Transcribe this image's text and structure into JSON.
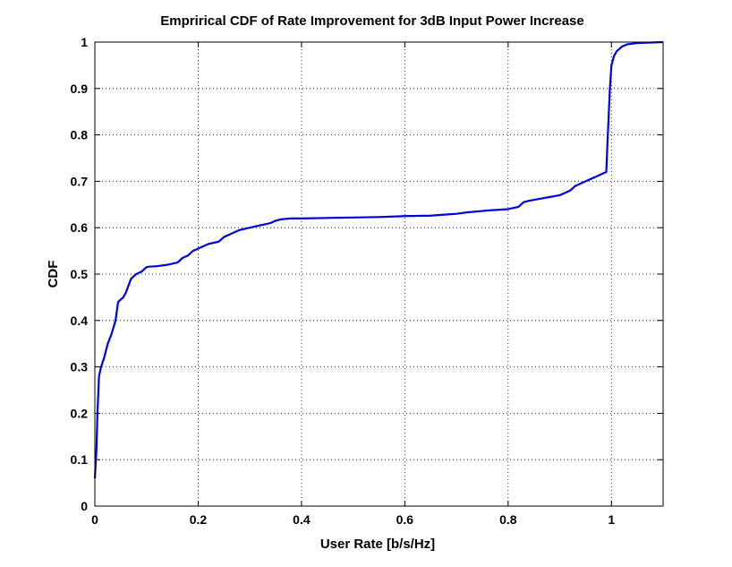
{
  "chart_data": {
    "type": "line",
    "title": "Emprirical CDF of Rate Improvement for 3dB Input Power Increase",
    "xlabel": "User Rate [b/s/Hz]",
    "ylabel": "CDF",
    "xlim": [
      0,
      1.1
    ],
    "ylim": [
      0,
      1
    ],
    "xticks": [
      0,
      0.2,
      0.4,
      0.6,
      0.8,
      1
    ],
    "xtick_labels": [
      "0",
      "0.2",
      "0.4",
      "0.6",
      "0.8",
      "1"
    ],
    "yticks": [
      0,
      0.1,
      0.2,
      0.3,
      0.4,
      0.5,
      0.6,
      0.7,
      0.8,
      0.9,
      1
    ],
    "ytick_labels": [
      "0",
      "0.1",
      "0.2",
      "0.3",
      "0.4",
      "0.5",
      "0.6",
      "0.7",
      "0.8",
      "0.9",
      "1"
    ],
    "grid": true,
    "series": [
      {
        "color": "#0000e0",
        "x": [
          0,
          0.003,
          0.005,
          0.008,
          0.012,
          0.018,
          0.025,
          0.032,
          0.04,
          0.045,
          0.05,
          0.055,
          0.06,
          0.065,
          0.07,
          0.075,
          0.08,
          0.09,
          0.095,
          0.1,
          0.105,
          0.12,
          0.14,
          0.16,
          0.17,
          0.18,
          0.19,
          0.2,
          0.21,
          0.22,
          0.24,
          0.25,
          0.26,
          0.28,
          0.3,
          0.32,
          0.34,
          0.35,
          0.36,
          0.38,
          0.4,
          0.45,
          0.5,
          0.55,
          0.6,
          0.65,
          0.7,
          0.72,
          0.74,
          0.76,
          0.8,
          0.82,
          0.83,
          0.84,
          0.86,
          0.88,
          0.9,
          0.91,
          0.92,
          0.93,
          0.94,
          0.95,
          0.96,
          0.97,
          0.98,
          0.99,
          0.993,
          0.995,
          0.997,
          1.0,
          1.005,
          1.01,
          1.02,
          1.03,
          1.05,
          1.1
        ],
        "y": [
          0.06,
          0.12,
          0.2,
          0.28,
          0.3,
          0.32,
          0.35,
          0.37,
          0.4,
          0.44,
          0.445,
          0.45,
          0.46,
          0.475,
          0.49,
          0.495,
          0.5,
          0.505,
          0.51,
          0.515,
          0.516,
          0.517,
          0.52,
          0.525,
          0.535,
          0.54,
          0.55,
          0.555,
          0.56,
          0.565,
          0.57,
          0.58,
          0.585,
          0.595,
          0.6,
          0.605,
          0.61,
          0.615,
          0.618,
          0.62,
          0.62,
          0.621,
          0.622,
          0.623,
          0.625,
          0.626,
          0.63,
          0.633,
          0.635,
          0.637,
          0.64,
          0.645,
          0.655,
          0.658,
          0.662,
          0.666,
          0.67,
          0.675,
          0.68,
          0.69,
          0.695,
          0.7,
          0.705,
          0.71,
          0.715,
          0.72,
          0.8,
          0.85,
          0.9,
          0.95,
          0.97,
          0.98,
          0.99,
          0.995,
          0.998,
          1.0
        ]
      }
    ]
  }
}
